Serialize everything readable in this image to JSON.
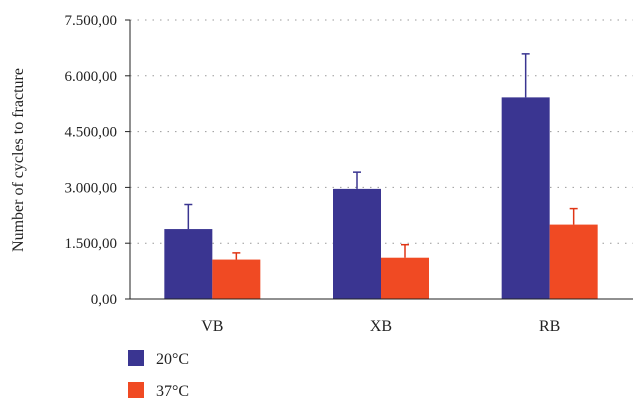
{
  "chart_data": {
    "type": "bar",
    "title": "",
    "xlabel": "",
    "ylabel": "Number of cycles to fracture",
    "categories": [
      "VB",
      "XB",
      "RB"
    ],
    "series": [
      {
        "name": "20°C",
        "color": "#3a3591",
        "values": [
          1880,
          2960,
          5420
        ],
        "error_upper": [
          2540,
          3410,
          6590
        ]
      },
      {
        "name": "37°C",
        "color": "#f04a23",
        "values": [
          1060,
          1110,
          2000
        ],
        "error_upper": [
          1240,
          1460,
          2430
        ]
      }
    ],
    "ylim": [
      0,
      7500
    ],
    "yticks": [
      0,
      1500,
      3000,
      4500,
      6000,
      7500
    ],
    "ytick_labels": [
      "0,00",
      "1.500,00",
      "3.000,00",
      "4.500,00",
      "6.000,00",
      "7.500,00"
    ],
    "grid": true,
    "legend_position": "bottom-left"
  }
}
